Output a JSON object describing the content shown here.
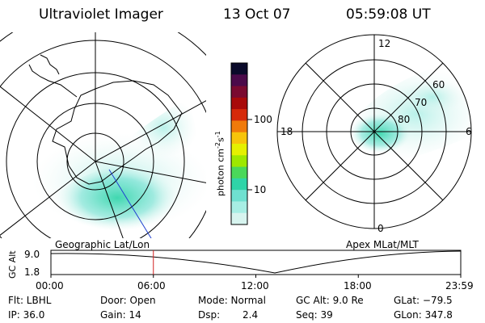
{
  "header": {
    "title": "Ultraviolet Imager",
    "date": "13 Oct 07",
    "time": "05:59:08 UT"
  },
  "left_map": {
    "caption": "Geographic Lat/Lon"
  },
  "right_map": {
    "caption": "Apex MLat/MLT",
    "mlt_labels": {
      "top": "12",
      "left": "18",
      "right": "6",
      "bottom": "0"
    },
    "lat_labels": [
      "80",
      "70",
      "60"
    ]
  },
  "colorbar": {
    "unit_main": "photon cm",
    "unit_sup1": "-2",
    "unit_mid": "s",
    "unit_sup2": "-1",
    "ticks": [
      "100",
      "10"
    ],
    "colors": [
      "#0a0a2a",
      "#4b0a4a",
      "#7a0a30",
      "#a80a0a",
      "#d62a0a",
      "#f07a0a",
      "#f7c40a",
      "#e5f000",
      "#9ee800",
      "#4ad85a",
      "#2fd4a8",
      "#6fe0d0",
      "#a7eee4",
      "#d7f4ef"
    ]
  },
  "altitude_panel": {
    "axis_label": "GC Alt",
    "y_ticks": [
      "9.0",
      "1.8"
    ],
    "x_ticks": [
      "00:00",
      "06:00",
      "12:00",
      "18:00",
      "23:59"
    ],
    "current_time_fraction": 0.25
  },
  "info": {
    "flt": "Flt: LBHL",
    "ip": "IP: 36.0",
    "door": "Door: Open",
    "gain": "Gain: 14",
    "mode": "Mode: Normal",
    "dsp_label": "Dsp:",
    "dsp_value": "2.4",
    "gcalt": "GC Alt: 9.0 Re",
    "seq": "Seq: 39",
    "glat": "GLat: −79.5",
    "glon": "GLon: 347.8"
  }
}
